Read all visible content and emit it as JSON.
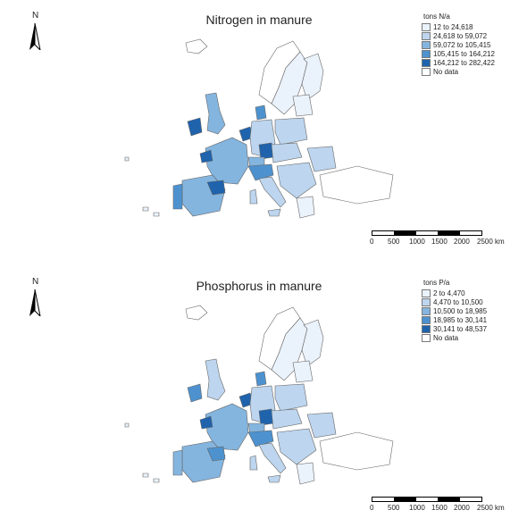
{
  "panels": [
    {
      "title": "Nitrogen in manure",
      "legend_title": "tons N/a",
      "classes": [
        {
          "label": "12 to 24,618",
          "color": "#eaf2fb"
        },
        {
          "label": "24,618 to 59,072",
          "color": "#bdd5ee"
        },
        {
          "label": "59,072 to 105,415",
          "color": "#84b5df"
        },
        {
          "label": "105,415 to 164,212",
          "color": "#4d92cf"
        },
        {
          "label": "164,212 to 282,422",
          "color": "#1f63ad"
        },
        {
          "label": "No data",
          "color": "#ffffff"
        }
      ]
    },
    {
      "title": "Phosphorus in manure",
      "legend_title": "tons P/a",
      "classes": [
        {
          "label": "2 to 4,470",
          "color": "#eaf2fb"
        },
        {
          "label": "4,470 to 10,500",
          "color": "#bdd5ee"
        },
        {
          "label": "10,500 to 18,985",
          "color": "#84b5df"
        },
        {
          "label": "18,985 to 30,141",
          "color": "#4d92cf"
        },
        {
          "label": "30,141 to 48,537",
          "color": "#1f63ad"
        },
        {
          "label": "No data",
          "color": "#ffffff"
        }
      ]
    }
  ],
  "north_label": "N",
  "scale_labels": [
    "0",
    "500",
    "1000",
    "1500",
    "2000",
    "2500 km"
  ]
}
